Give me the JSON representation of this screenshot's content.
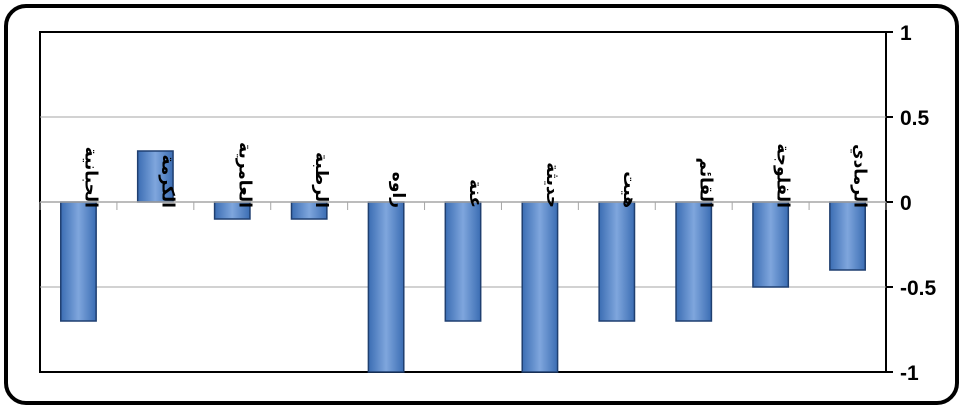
{
  "chart_data": {
    "type": "bar",
    "categories": [
      "الرمادي",
      "الفلوجة",
      "القائم",
      "هيت",
      "حديثة",
      "عنة",
      "راوه",
      "الرطبة",
      "العامرية",
      "الكرمة",
      "الحبانية"
    ],
    "values": [
      -0.4,
      -0.5,
      -0.7,
      -0.7,
      -1.0,
      -0.7,
      -1.0,
      -0.1,
      -0.1,
      0.3,
      -0.7
    ],
    "ylim": [
      -1,
      1
    ],
    "yticks": [
      "1",
      "0.5",
      "0",
      "-0.5",
      "-1"
    ],
    "ytick_values": [
      1,
      0.5,
      0,
      -0.5,
      -1
    ],
    "y_axis_side": "right",
    "x_axis_direction": "right-to-left",
    "grid": true,
    "title": "",
    "xlabel": "",
    "ylabel": ""
  },
  "colors": {
    "bar_fill_light": "#7fa6dd",
    "bar_fill_dark": "#3b6db3",
    "bar_edge": "#1f3f70",
    "grid": "#a6a6a6",
    "axis": "#000000"
  }
}
